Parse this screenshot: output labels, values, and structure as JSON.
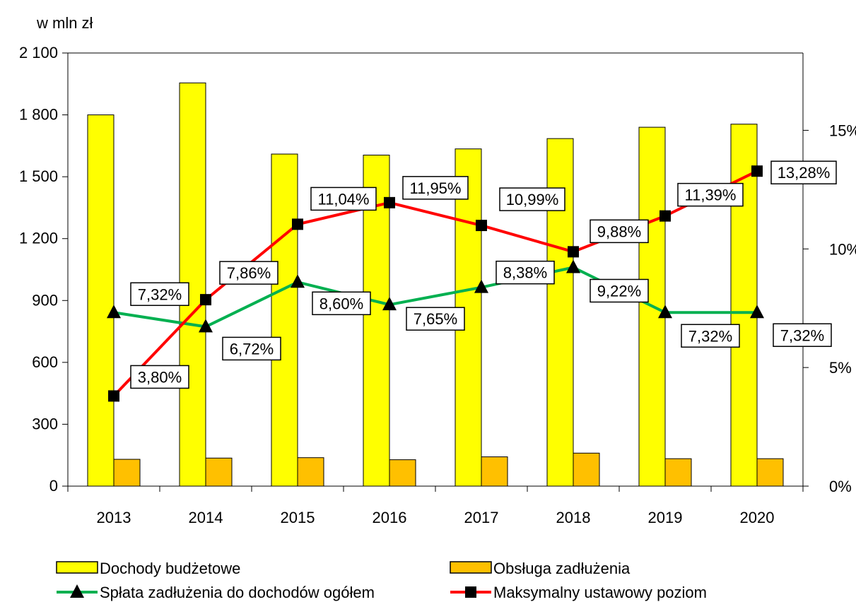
{
  "chart_data": {
    "type": "bar",
    "categories": [
      "2013",
      "2014",
      "2015",
      "2016",
      "2017",
      "2018",
      "2019",
      "2020"
    ],
    "y_unit_label": "w  mln  zł",
    "y_left": {
      "min": 0,
      "max": 2100,
      "ticks": [
        0,
        300,
        600,
        900,
        1200,
        1500,
        1800,
        2100
      ],
      "tick_labels": [
        "0",
        "300",
        "600",
        "900",
        "1 200",
        "1 500",
        "1 800",
        "2 100"
      ]
    },
    "y_right": {
      "min": 0,
      "max": 0.1826,
      "ticks": [
        0,
        0.05,
        0.1,
        0.15
      ],
      "tick_labels": [
        "0%",
        "5%",
        "10%",
        "15%"
      ]
    },
    "grid": false,
    "legend_position": "bottom",
    "series": [
      {
        "name": "Dochody budżetowe",
        "kind": "bar",
        "axis": "left",
        "color": "#ffff00",
        "values": [
          1800,
          1955,
          1610,
          1605,
          1635,
          1685,
          1740,
          1755
        ]
      },
      {
        "name": "Obsługa zadłużenia",
        "kind": "bar",
        "axis": "left",
        "color": "#ffc000",
        "values": [
          130,
          136,
          138,
          128,
          142,
          160,
          133,
          133
        ]
      },
      {
        "name": "Spłata zadłużenia do dochodów ogółem",
        "kind": "line",
        "axis": "right",
        "color": "#00b050",
        "marker": "triangle",
        "values": [
          0.0732,
          0.0672,
          0.086,
          0.0765,
          0.0838,
          0.0922,
          0.0732,
          0.0732
        ],
        "labels": [
          "7,32%",
          "6,72%",
          "8,60%",
          "7,65%",
          "8,38%",
          "9,22%",
          "7,32%",
          "7,32%"
        ]
      },
      {
        "name": "Maksymalny ustawowy poziom",
        "kind": "line",
        "axis": "right",
        "color": "#ff0000",
        "marker": "square",
        "values": [
          0.038,
          0.0786,
          0.1104,
          0.1195,
          0.1099,
          0.0988,
          0.1139,
          0.1328
        ],
        "labels": [
          "3,80%",
          "7,86%",
          "11,04%",
          "11,95%",
          "10,99%",
          "9,88%",
          "11,39%",
          "13,28%"
        ]
      }
    ]
  }
}
